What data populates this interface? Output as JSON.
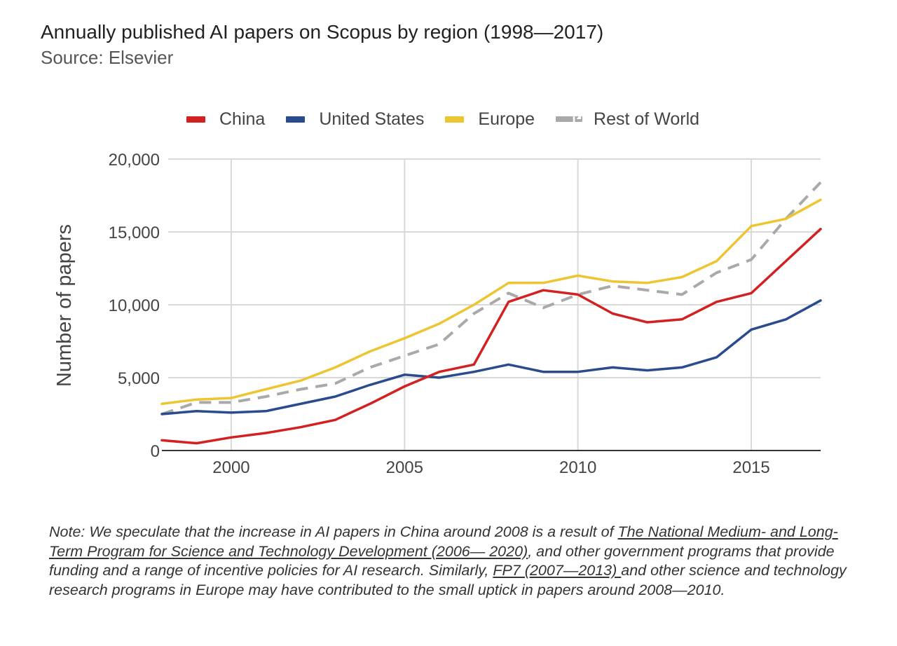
{
  "header": {
    "title": "Annually published AI papers on Scopus by region (1998—2017)",
    "subtitle": "Source: Elsevier"
  },
  "colors": {
    "china": "#d32020",
    "united_states": "#2a4b8d",
    "europe": "#ecc531",
    "rest_of_world": "#a9a9a9",
    "grid": "#d9d9d9",
    "axis": "#333333"
  },
  "chart_data": {
    "type": "line",
    "title": "Annually published AI papers on Scopus by region (1998—2017)",
    "subtitle": "Source: Elsevier",
    "xlabel": "",
    "ylabel": "Number of papers",
    "xlim": [
      1998,
      2017
    ],
    "ylim": [
      0,
      20000
    ],
    "x_ticks": [
      2000,
      2005,
      2010,
      2015
    ],
    "x_tick_labels": [
      "2000",
      "2005",
      "2010",
      "2015"
    ],
    "y_ticks": [
      0,
      5000,
      10000,
      15000,
      20000
    ],
    "y_tick_labels": [
      "0",
      "5,000",
      "10,000",
      "15,000",
      "20,000"
    ],
    "grid": true,
    "legend_position": "top",
    "x": [
      1998,
      1999,
      2000,
      2001,
      2002,
      2003,
      2004,
      2005,
      2006,
      2007,
      2008,
      2009,
      2010,
      2011,
      2012,
      2013,
      2014,
      2015,
      2016,
      2017
    ],
    "series": [
      {
        "name": "China",
        "style": "solid",
        "color": "#d32020",
        "values": [
          700,
          500,
          900,
          1200,
          1600,
          2100,
          3200,
          4400,
          5400,
          5900,
          10200,
          11000,
          10700,
          9400,
          8800,
          9000,
          10200,
          10800,
          13000,
          15200
        ]
      },
      {
        "name": "United States",
        "style": "solid",
        "color": "#2a4b8d",
        "values": [
          2500,
          2700,
          2600,
          2700,
          3200,
          3700,
          4500,
          5200,
          5000,
          5400,
          5900,
          5400,
          5400,
          5700,
          5500,
          5700,
          6400,
          8300,
          9000,
          10300
        ]
      },
      {
        "name": "Europe",
        "style": "solid",
        "color": "#ecc531",
        "values": [
          3200,
          3500,
          3600,
          4200,
          4800,
          5700,
          6800,
          7700,
          8700,
          10000,
          11500,
          11500,
          12000,
          11600,
          11500,
          11900,
          13000,
          15400,
          15900,
          17200
        ]
      },
      {
        "name": "Rest of World",
        "style": "dashed",
        "color": "#a9a9a9",
        "values": [
          2500,
          3300,
          3300,
          3700,
          4200,
          4600,
          5700,
          6500,
          7300,
          9400,
          10800,
          9800,
          10700,
          11300,
          11000,
          10700,
          12200,
          13100,
          15900,
          18400
        ]
      }
    ]
  },
  "note": {
    "text_1": "Note: We speculate that the increase in AI papers in China around 2008 is a result of ",
    "link_1": "The National Medium- and Long-Term Program for Science and Technology Development (2006— 2020)",
    "text_2": ", and other government programs that provide funding and a range of incentive policies for AI research. Similarly, ",
    "link_2": "FP7 (2007—2013) ",
    "text_3": "and other science and technology research programs in Europe may have contributed to the small uptick in papers around 2008—2010."
  }
}
